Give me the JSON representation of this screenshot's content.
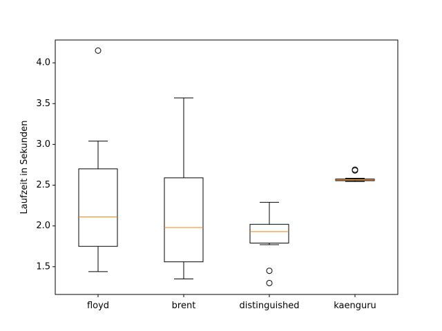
{
  "chart_data": {
    "type": "boxplot",
    "title": "",
    "xlabel": "",
    "ylabel": "Laufzeit in Sekunden",
    "ylim": [
      1.16,
      4.28
    ],
    "yticks": [
      1.5,
      2.0,
      2.5,
      3.0,
      3.5,
      4.0
    ],
    "ytick_labels": [
      "1.5",
      "2.0",
      "2.5",
      "3.0",
      "3.5",
      "4.0"
    ],
    "grid": false,
    "colors": {
      "box": "#000000",
      "median": "#ff7f0e",
      "background": "#ffffff"
    },
    "categories": [
      "floyd",
      "brent",
      "distinguished",
      "kaenguru"
    ],
    "boxes": [
      {
        "name": "floyd",
        "whisker_low": 1.44,
        "q1": 1.75,
        "median": 2.11,
        "q3": 2.7,
        "whisker_high": 3.04,
        "outliers": [
          4.15
        ]
      },
      {
        "name": "brent",
        "whisker_low": 1.35,
        "q1": 1.56,
        "median": 1.98,
        "q3": 2.59,
        "whisker_high": 3.57,
        "outliers": []
      },
      {
        "name": "distinguished",
        "whisker_low": 1.77,
        "q1": 1.79,
        "median": 1.93,
        "q3": 2.02,
        "whisker_high": 2.29,
        "outliers": [
          1.45,
          1.3
        ]
      },
      {
        "name": "kaenguru",
        "whisker_low": 2.545,
        "q1": 2.555,
        "median": 2.565,
        "q3": 2.575,
        "whisker_high": 2.585,
        "outliers": [
          2.68,
          2.69
        ]
      }
    ]
  }
}
